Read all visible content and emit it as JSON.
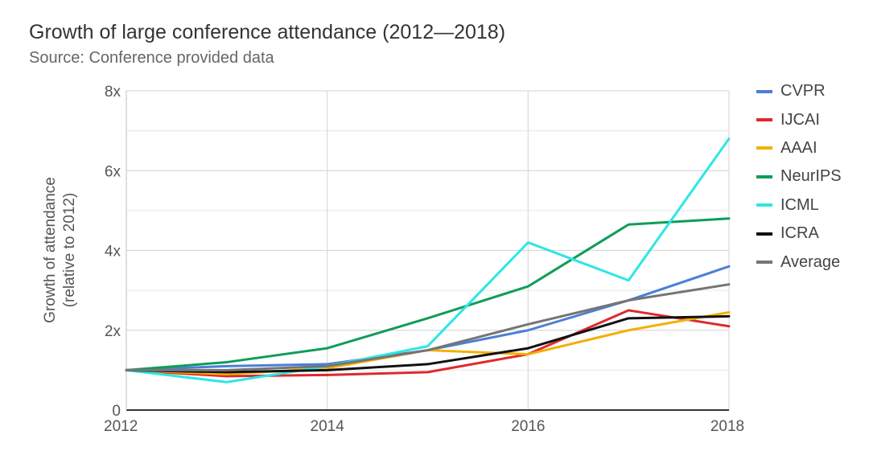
{
  "chart_data": {
    "type": "line",
    "title": "Growth of large conference attendance (2012—2018)",
    "subtitle": "Source: Conference provided data",
    "xlabel": "",
    "ylabel": [
      "Growth of attendance",
      "(relative to 2012)"
    ],
    "x": [
      2012,
      2013,
      2014,
      2015,
      2016,
      2017,
      2018
    ],
    "xticks": [
      "2012",
      "2014",
      "2016",
      "2018"
    ],
    "yticks": [
      "0",
      "2x",
      "4x",
      "6x",
      "8x"
    ],
    "xlim": [
      2012,
      2018
    ],
    "ylim": [
      0,
      8
    ],
    "grid": true,
    "legend_position": "right",
    "series": [
      {
        "name": "CVPR",
        "color": "#4A7FD8",
        "values": [
          1.0,
          1.1,
          1.15,
          1.5,
          2.0,
          2.75,
          3.6
        ]
      },
      {
        "name": "IJCAI",
        "color": "#E0282E",
        "values": [
          1.0,
          0.85,
          0.88,
          0.95,
          1.4,
          2.5,
          2.1
        ]
      },
      {
        "name": "AAAI",
        "color": "#F2B000",
        "values": [
          1.0,
          0.9,
          1.05,
          1.5,
          1.4,
          2.0,
          2.45
        ]
      },
      {
        "name": "NeurIPS",
        "color": "#0F9D58",
        "values": [
          1.0,
          1.2,
          1.55,
          2.3,
          3.1,
          4.65,
          4.8
        ]
      },
      {
        "name": "ICML",
        "color": "#2EE6E6",
        "values": [
          1.0,
          0.7,
          1.1,
          1.6,
          4.2,
          3.25,
          6.8
        ]
      },
      {
        "name": "ICRA",
        "color": "#111111",
        "values": [
          1.0,
          0.95,
          1.0,
          1.15,
          1.55,
          2.3,
          2.35
        ]
      },
      {
        "name": "Average",
        "color": "#757575",
        "values": [
          1.0,
          1.0,
          1.1,
          1.5,
          2.15,
          2.75,
          3.15
        ]
      }
    ]
  }
}
